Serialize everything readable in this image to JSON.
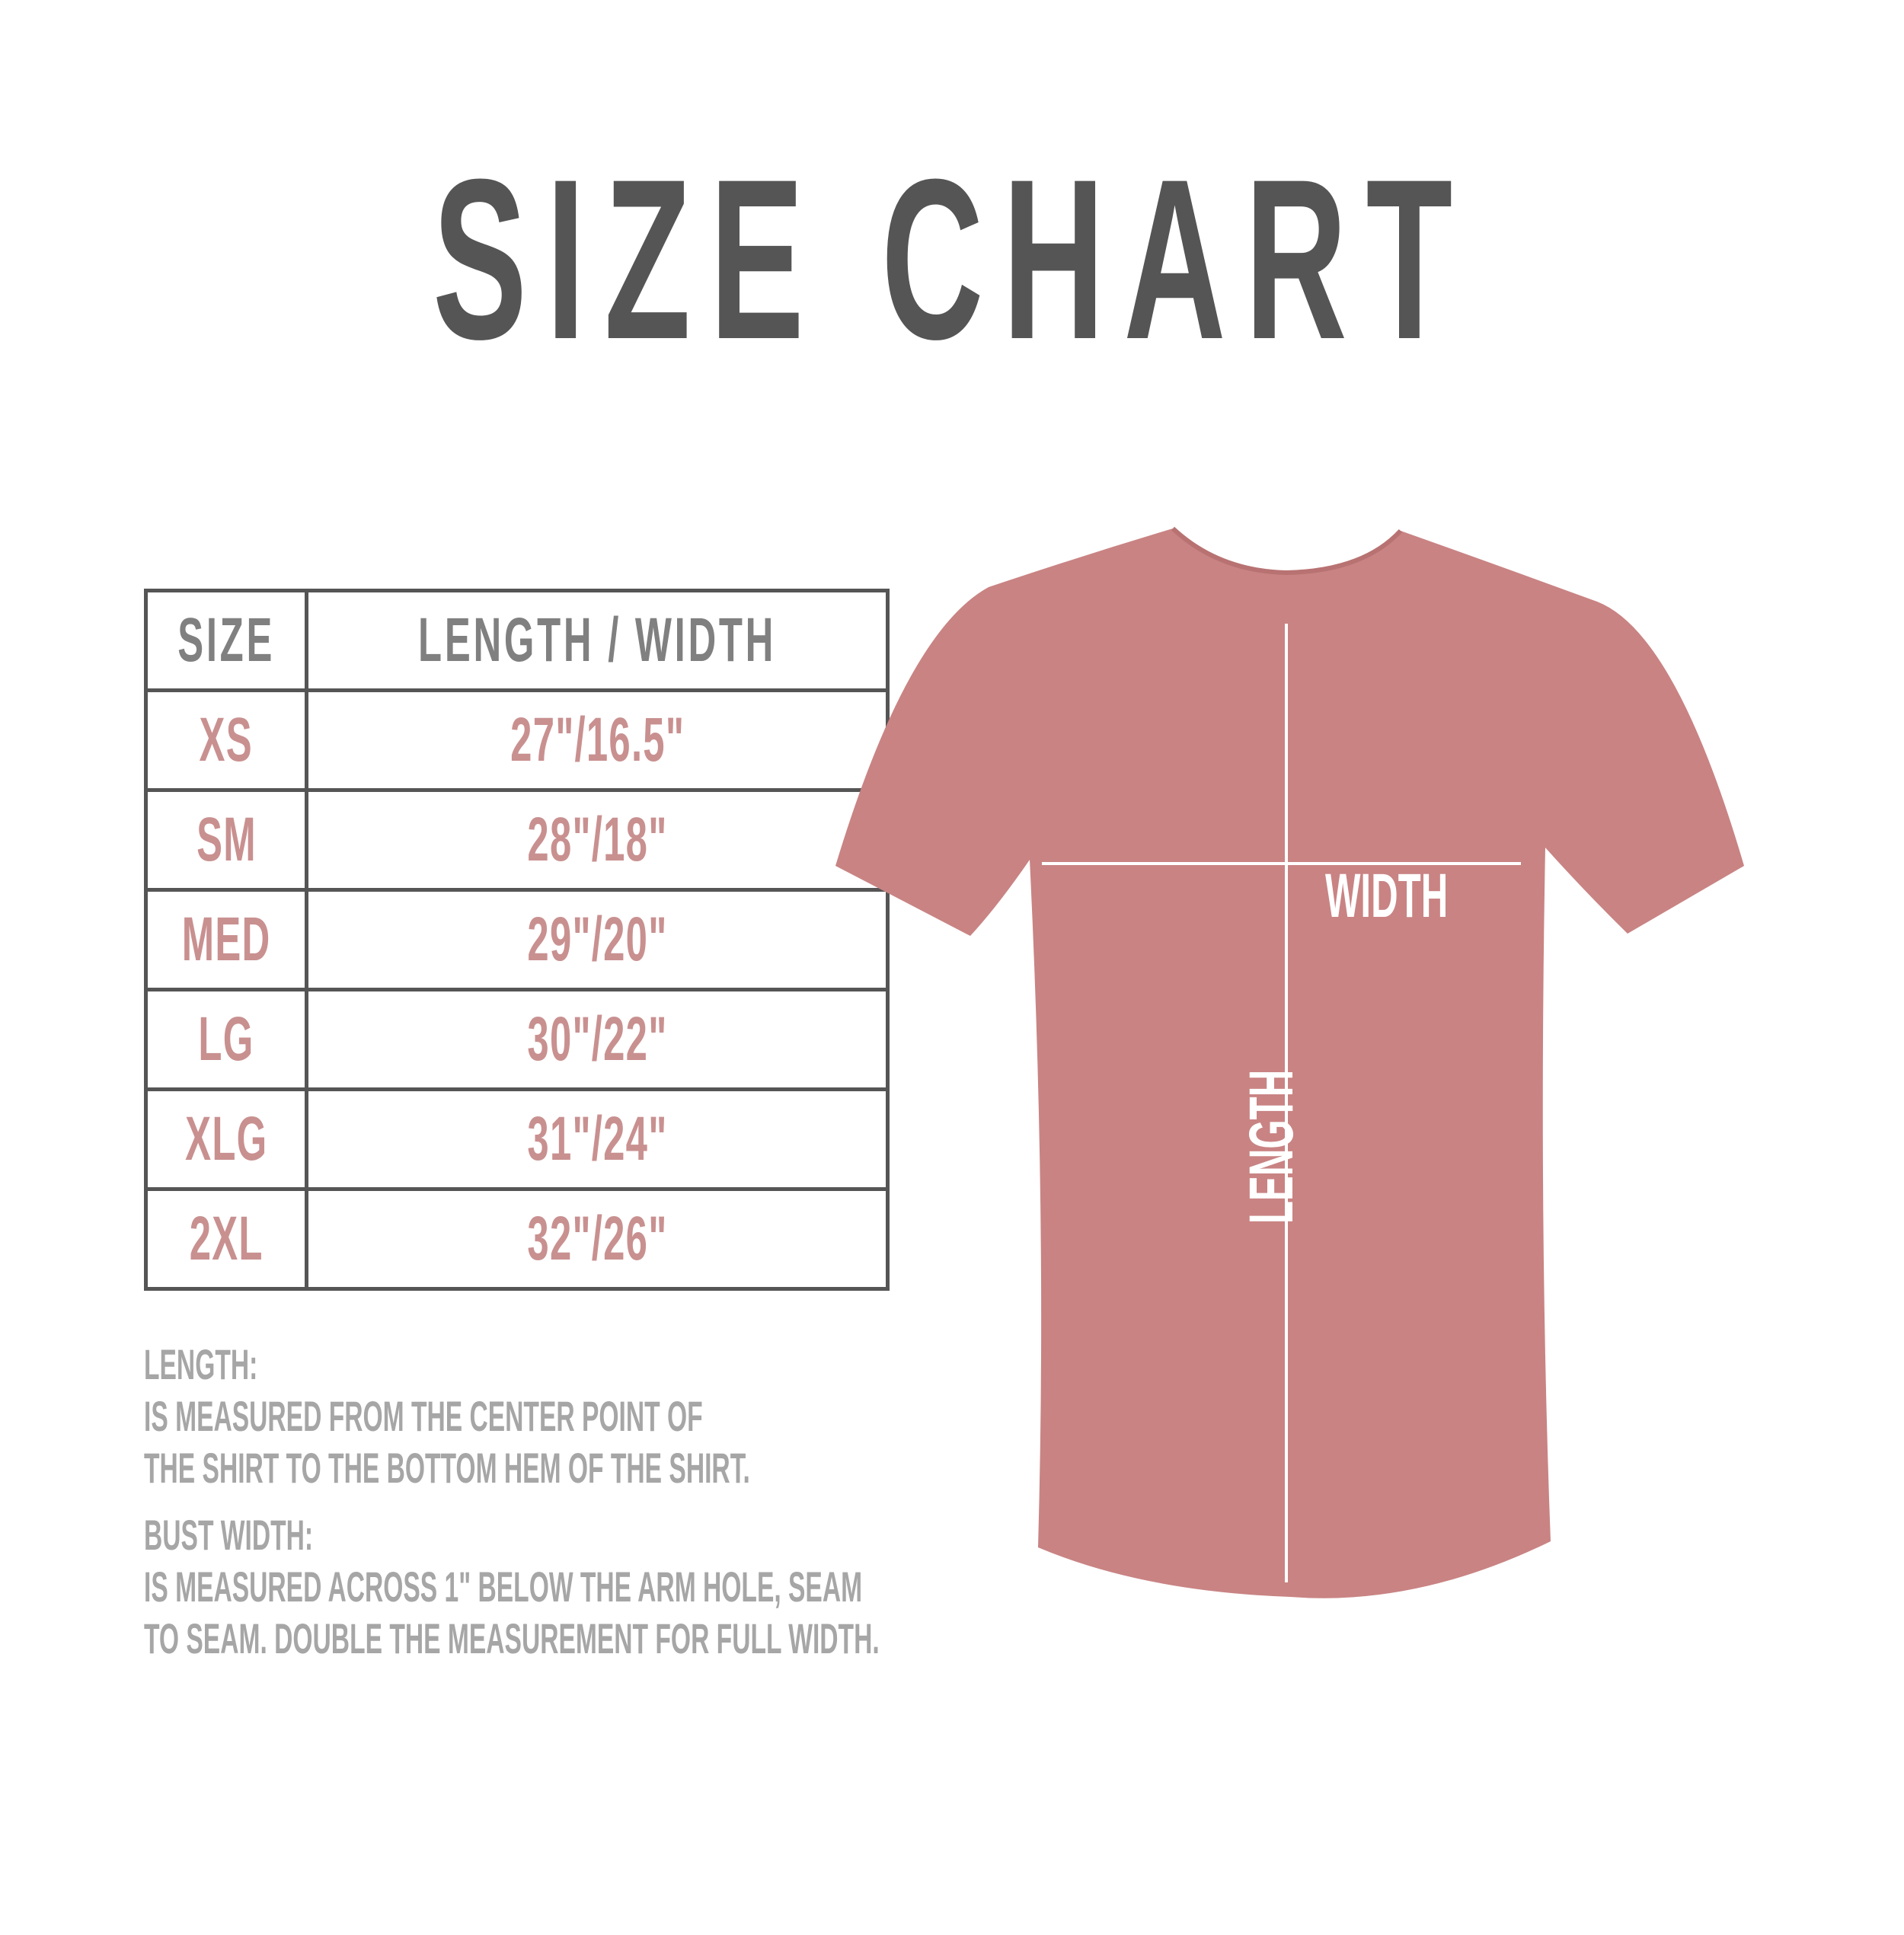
{
  "title": "SIZE CHART",
  "colors": {
    "title": "#555555",
    "header_text": "#808080",
    "value_text": "#c99090",
    "note_text": "#a6a6a6",
    "shirt": "#c98383",
    "border": "#555555"
  },
  "table": {
    "headers": [
      "SIZE",
      "LENGTH / WIDTH"
    ],
    "rows": [
      {
        "size": "XS",
        "measure": "27\"/16.5\""
      },
      {
        "size": "SM",
        "measure": "28\"/18\""
      },
      {
        "size": "MED",
        "measure": "29\"/20\""
      },
      {
        "size": "LG",
        "measure": "30\"/22\""
      },
      {
        "size": "XLG",
        "measure": "31\"/24\""
      },
      {
        "size": "2XL",
        "measure": "32\"/26\""
      }
    ]
  },
  "notes": {
    "length_heading": "LENGTH:",
    "length_line1": "IS MEASURED FROM THE CENTER POINT OF",
    "length_line2": "THE SHIRT TO THE BOTTOM HEM OF THE SHIRT.",
    "width_heading": "BUST WIDTH:",
    "width_line1": "IS MEASURED ACROSS  1\" BELOW THE ARM HOLE, SEAM",
    "width_line2": "TO SEAM. DOUBLE THE MEASUREMENT FOR FULL WIDTH."
  },
  "shirt": {
    "width_label": "WIDTH",
    "length_label": "LENGTH"
  }
}
